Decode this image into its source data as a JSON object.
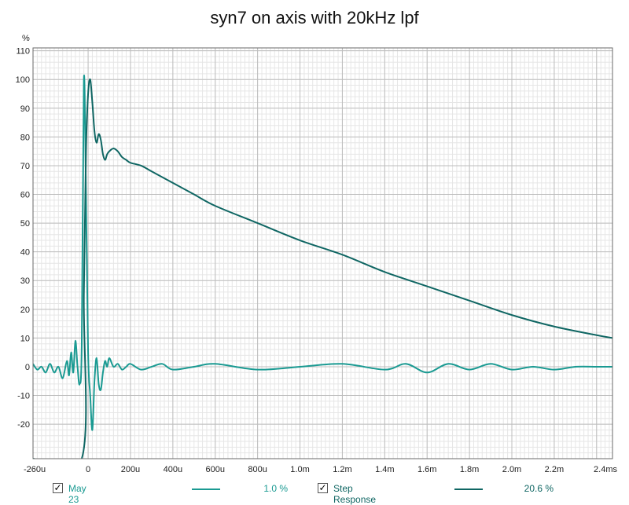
{
  "chart_data": {
    "type": "line",
    "title": "syn7 on axis with 20kHz lpf",
    "ylabel": "%",
    "xlabel": "",
    "y_ticks": [
      110,
      100,
      90,
      80,
      70,
      60,
      50,
      40,
      30,
      20,
      10,
      0,
      -10,
      -20
    ],
    "y_tick_labels": [
      "110",
      "100",
      "90",
      "80",
      "70",
      "60",
      "50",
      "40",
      "30",
      "20",
      "10",
      "0",
      "-10",
      "-20"
    ],
    "ylim": [
      -32,
      111
    ],
    "x_ticks_ms": [
      -0.26,
      0,
      0.2,
      0.4,
      0.6,
      0.8,
      1.0,
      1.2,
      1.4,
      1.6,
      1.8,
      2.0,
      2.2,
      2.4
    ],
    "x_tick_labels": [
      "-260u",
      "0",
      "200u",
      "400u",
      "600u",
      "800u",
      "1.0m",
      "1.2m",
      "1.4m",
      "1.6m",
      "1.8m",
      "2.0m",
      "2.2m",
      "2.4ms"
    ],
    "xlim_ms": [
      -0.26,
      2.475
    ],
    "grid": true,
    "legend_position": "bottom",
    "series": [
      {
        "name": "May 23",
        "legend_value": "1.0 %",
        "color": "#1a9a92",
        "x_ms": [
          -0.26,
          -0.24,
          -0.22,
          -0.2,
          -0.18,
          -0.16,
          -0.14,
          -0.12,
          -0.1,
          -0.09,
          -0.08,
          -0.07,
          -0.06,
          -0.05,
          -0.04,
          -0.03,
          -0.02,
          -0.01,
          0.0,
          0.01,
          0.02,
          0.03,
          0.04,
          0.05,
          0.06,
          0.07,
          0.08,
          0.09,
          0.1,
          0.12,
          0.14,
          0.16,
          0.18,
          0.2,
          0.25,
          0.3,
          0.35,
          0.4,
          0.5,
          0.6,
          0.8,
          1.0,
          1.2,
          1.4,
          1.5,
          1.6,
          1.7,
          1.8,
          1.9,
          2.0,
          2.1,
          2.2,
          2.3,
          2.4,
          2.475
        ],
        "y": [
          1,
          -1,
          0,
          -2,
          1,
          -2,
          0,
          -4,
          2,
          -3,
          5,
          -2,
          9,
          0,
          -6,
          8,
          100,
          60,
          5,
          -10,
          -22,
          -5,
          3,
          -6,
          -8,
          -2,
          2,
          0,
          3,
          0,
          1,
          -1,
          0,
          1,
          -1,
          0,
          1,
          -1,
          0,
          1,
          -1,
          0,
          1,
          -1,
          1,
          -2,
          1,
          -1,
          1,
          -1,
          0,
          -1,
          0,
          0,
          0
        ]
      },
      {
        "name": "Step Response",
        "legend_value": "20.6 %",
        "color": "#0f6663",
        "x_ms": [
          -0.26,
          -0.03,
          -0.02,
          -0.01,
          0.0,
          0.01,
          0.02,
          0.03,
          0.04,
          0.05,
          0.06,
          0.07,
          0.08,
          0.09,
          0.1,
          0.12,
          0.14,
          0.16,
          0.18,
          0.2,
          0.25,
          0.3,
          0.4,
          0.5,
          0.6,
          0.8,
          1.0,
          1.2,
          1.4,
          1.6,
          1.8,
          2.0,
          2.2,
          2.4,
          2.475
        ],
        "y": [
          -32,
          -32,
          25,
          75,
          95,
          100,
          92,
          82,
          78,
          81,
          79,
          74,
          72,
          74,
          75,
          76,
          75,
          73,
          72,
          71,
          70,
          68,
          64,
          60,
          56,
          50,
          44,
          39,
          33,
          28,
          23,
          18,
          14,
          11,
          10
        ]
      }
    ]
  }
}
